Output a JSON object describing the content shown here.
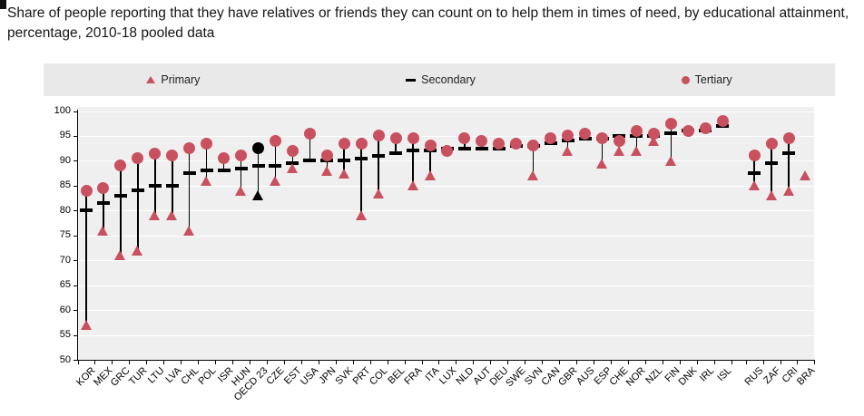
{
  "title": "Share of people reporting that they have relatives or friends they can count on to help them in times of need, by educational attainment, percentage, 2010-18 pooled data",
  "legend": {
    "items": [
      {
        "label": "Primary",
        "marker": "triangle",
        "color": "#c8505f"
      },
      {
        "label": "Secondary",
        "marker": "dash",
        "color": "#000000"
      },
      {
        "label": "Tertiary",
        "marker": "circle",
        "color": "#c8505f"
      }
    ]
  },
  "chart_data": {
    "type": "scatter",
    "variant": "lollipop-dot-plot",
    "title": "Share of people reporting that they have relatives or friends they can count on to help them in times of need, by educational attainment, percentage, 2010-18 pooled data",
    "xlabel": "",
    "ylabel": "",
    "grid": true,
    "legend_position": "top",
    "y_axis": {
      "min": 50,
      "max": 100,
      "step": 5,
      "tick_labels": [
        "100",
        "95",
        "90",
        "85",
        "80",
        "75",
        "70",
        "65",
        "60",
        "55",
        "50"
      ]
    },
    "categories": [
      "KOR",
      "MEX",
      "GRC",
      "TUR",
      "LTU",
      "LVA",
      "CHL",
      "POL",
      "ISR",
      "HUN",
      "OECD 23",
      "CZE",
      "EST",
      "USA",
      "JPN",
      "SVK",
      "PRT",
      "COL",
      "BEL",
      "FRA",
      "ITA",
      "LUX",
      "NLD",
      "AUT",
      "DEU",
      "SWE",
      "SVN",
      "CAN",
      "GBR",
      "AUS",
      "ESP",
      "CHE",
      "NOR",
      "NZL",
      "FIN",
      "DNK",
      "IRL",
      "ISL",
      "RUS",
      "ZAF",
      "CRI",
      "BRA"
    ],
    "series": [
      {
        "name": "Primary",
        "marker": "triangle",
        "color": "#c8505f",
        "values": [
          57,
          76,
          71,
          72,
          79,
          79,
          76,
          86,
          null,
          84,
          83,
          86,
          88.5,
          null,
          88,
          87.5,
          79,
          83.5,
          null,
          85,
          87,
          null,
          null,
          null,
          null,
          null,
          87,
          null,
          92,
          null,
          89.5,
          92,
          92,
          94,
          90,
          null,
          null,
          null,
          85,
          83,
          84,
          87
        ]
      },
      {
        "name": "Secondary",
        "marker": "dash",
        "color": "#000000",
        "values": [
          80,
          81.5,
          83,
          84,
          85,
          85,
          87.5,
          88,
          88,
          88.5,
          89,
          89,
          89.5,
          90,
          90,
          90,
          90.5,
          91,
          91.5,
          92,
          92,
          92.5,
          92.5,
          92.5,
          92.5,
          93,
          93,
          93.5,
          94,
          94.5,
          94.5,
          95,
          95,
          95,
          95.5,
          96,
          96,
          97,
          87.5,
          89.5,
          91.5,
          null
        ]
      },
      {
        "name": "Tertiary",
        "marker": "circle",
        "color": "#c8505f",
        "values": [
          84,
          84.5,
          89,
          90.5,
          91.5,
          91,
          92.5,
          93.5,
          90.5,
          91,
          92.5,
          94,
          92,
          95.5,
          91,
          93.5,
          93.5,
          95,
          94.5,
          94.5,
          93,
          92,
          94.5,
          94,
          93.5,
          93.5,
          93,
          94.5,
          95,
          95.5,
          94.5,
          94,
          96,
          95.5,
          97.5,
          96,
          96.5,
          98,
          91,
          93.5,
          94.5,
          null
        ]
      }
    ],
    "highlight_category": "OECD 23",
    "highlight_color": "#000000",
    "group_gap_before_index": 38
  }
}
